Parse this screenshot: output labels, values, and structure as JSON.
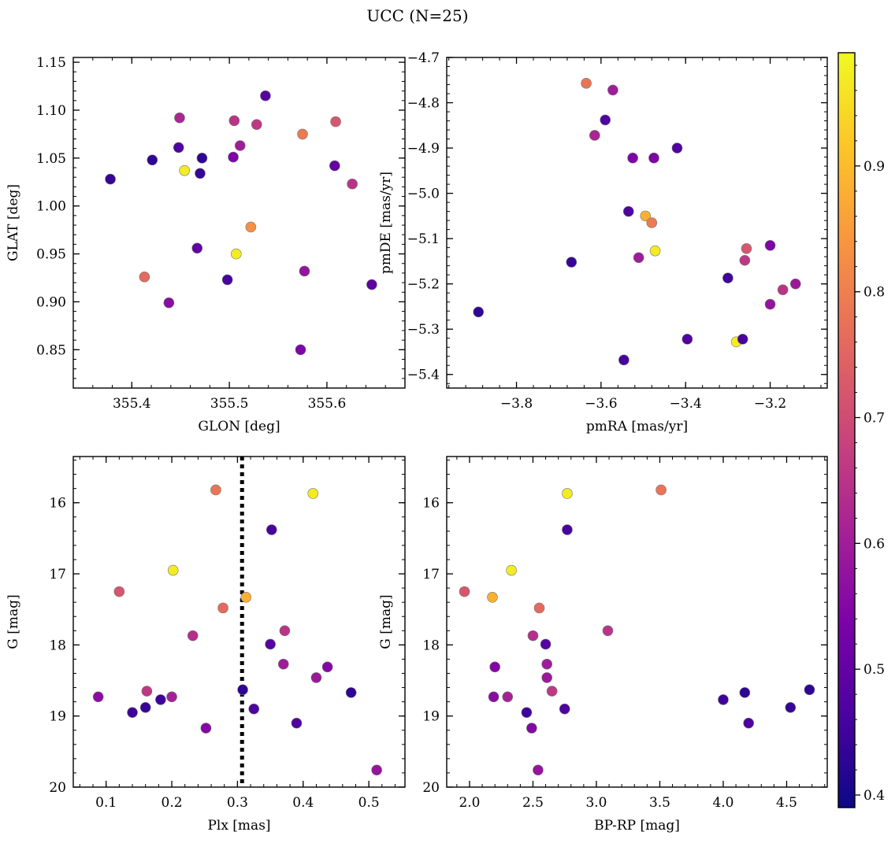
{
  "figure": {
    "suptitle": "UCC (N=25)"
  },
  "colorbar": {
    "colormap": "plasma",
    "range": [
      0.39,
      0.99
    ],
    "ticks": [
      0.4,
      0.5,
      0.6,
      0.7,
      0.8,
      0.9
    ],
    "tick_labels": [
      "0.4",
      "0.5",
      "0.6",
      "0.7",
      "0.8",
      "0.9"
    ]
  },
  "chart_data": [
    {
      "type": "scatter",
      "xlabel": "GLON [deg]",
      "ylabel": "GLAT [deg]",
      "xlim": [
        355.34,
        355.68
      ],
      "ylim": [
        0.81,
        1.155
      ],
      "xticks": [
        355.4,
        355.5,
        355.6
      ],
      "xtick_labels": [
        "355.4",
        "355.5",
        "355.6"
      ],
      "yticks": [
        0.85,
        0.9,
        0.95,
        1.0,
        1.05,
        1.1,
        1.15
      ],
      "ytick_labels": [
        "0.85",
        "0.90",
        "0.95",
        "1.00",
        "1.05",
        "1.10",
        "1.15"
      ],
      "x": [
        355.378,
        355.421,
        355.449,
        355.448,
        355.454,
        355.47,
        355.472,
        355.467,
        355.438,
        355.413,
        355.498,
        355.505,
        355.507,
        355.511,
        355.504,
        355.522,
        355.528,
        355.537,
        355.573,
        355.575,
        355.577,
        355.608,
        355.609,
        355.626,
        355.646
      ],
      "y": [
        1.028,
        1.048,
        1.092,
        1.061,
        1.037,
        1.034,
        1.05,
        0.956,
        0.899,
        0.926,
        0.923,
        1.089,
        0.95,
        1.063,
        1.051,
        0.978,
        1.085,
        1.115,
        0.85,
        1.075,
        0.932,
        1.042,
        1.088,
        1.023,
        0.918
      ],
      "c": [
        0.44,
        0.43,
        0.62,
        0.47,
        0.97,
        0.44,
        0.43,
        0.5,
        0.56,
        0.76,
        0.46,
        0.65,
        0.97,
        0.6,
        0.54,
        0.83,
        0.66,
        0.48,
        0.54,
        0.79,
        0.58,
        0.5,
        0.72,
        0.65,
        0.49
      ]
    },
    {
      "type": "scatter",
      "xlabel": "pmRA [mas/yr]",
      "ylabel": "pmDE [mas/yr]",
      "xlim": [
        -3.965,
        -3.065
      ],
      "ylim": [
        -5.43,
        -4.7
      ],
      "xticks": [
        -3.8,
        -3.6,
        -3.4,
        -3.2
      ],
      "xtick_labels": [
        "−3.8",
        "−3.6",
        "−3.4",
        "−3.2"
      ],
      "yticks": [
        -5.4,
        -5.3,
        -5.2,
        -5.1,
        -5.0,
        -4.9,
        -4.8,
        -4.7
      ],
      "ytick_labels": [
        "−5.4",
        "−5.3",
        "−5.2",
        "−5.1",
        "−5.0",
        "−4.9",
        "−4.8",
        "−4.7"
      ],
      "x": [
        -3.89,
        -3.67,
        -3.635,
        -3.59,
        -3.572,
        -3.615,
        -3.546,
        -3.535,
        -3.525,
        -3.511,
        -3.495,
        -3.48,
        -3.475,
        -3.472,
        -3.42,
        -3.396,
        -3.3,
        -3.28,
        -3.265,
        -3.26,
        -3.256,
        -3.2,
        -3.2,
        -3.17,
        -3.14
      ],
      "y": [
        -5.262,
        -5.152,
        -4.757,
        -4.838,
        -4.772,
        -4.872,
        -5.368,
        -5.04,
        -4.922,
        -5.142,
        -5.05,
        -5.065,
        -4.922,
        -5.127,
        -4.9,
        -5.322,
        -5.187,
        -5.328,
        -5.322,
        -5.148,
        -5.122,
        -5.245,
        -5.115,
        -5.213,
        -5.2
      ],
      "c": [
        0.43,
        0.44,
        0.78,
        0.47,
        0.6,
        0.62,
        0.46,
        0.47,
        0.54,
        0.6,
        0.88,
        0.79,
        0.54,
        0.97,
        0.47,
        0.47,
        0.45,
        0.97,
        0.46,
        0.66,
        0.72,
        0.58,
        0.54,
        0.65,
        0.59
      ]
    },
    {
      "type": "scatter",
      "xlabel": "Plx [mas]",
      "ylabel": "G [mag]",
      "xlim": [
        0.05,
        0.555
      ],
      "ylim": [
        20.0,
        15.35
      ],
      "y_inverted": true,
      "xticks": [
        0.1,
        0.2,
        0.3,
        0.4,
        0.5
      ],
      "xtick_labels": [
        "0.1",
        "0.2",
        "0.3",
        "0.4",
        "0.5"
      ],
      "yticks": [
        16,
        17,
        18,
        19,
        20
      ],
      "ytick_labels": [
        "16",
        "17",
        "18",
        "19",
        "20"
      ],
      "vline": {
        "x": 0.307,
        "style": "dotted",
        "color": "#000000"
      },
      "x": [
        0.088,
        0.12,
        0.14,
        0.16,
        0.162,
        0.183,
        0.2,
        0.202,
        0.232,
        0.252,
        0.267,
        0.278,
        0.308,
        0.313,
        0.325,
        0.35,
        0.352,
        0.37,
        0.372,
        0.39,
        0.415,
        0.42,
        0.437,
        0.473,
        0.512
      ],
      "y": [
        18.73,
        17.25,
        18.95,
        18.88,
        18.65,
        18.77,
        18.73,
        16.95,
        17.87,
        19.17,
        15.82,
        17.48,
        18.63,
        17.33,
        18.9,
        17.99,
        16.38,
        18.27,
        17.8,
        19.1,
        15.87,
        18.46,
        18.31,
        18.67,
        19.76
      ],
      "c": [
        0.56,
        0.72,
        0.45,
        0.44,
        0.66,
        0.45,
        0.61,
        0.97,
        0.64,
        0.55,
        0.78,
        0.76,
        0.43,
        0.88,
        0.47,
        0.48,
        0.46,
        0.6,
        0.65,
        0.47,
        0.97,
        0.59,
        0.55,
        0.43,
        0.58
      ]
    },
    {
      "type": "scatter",
      "xlabel": "BP-RP [mag]",
      "ylabel": "G [mag]",
      "xlim": [
        1.82,
        4.82
      ],
      "ylim": [
        20.0,
        15.35
      ],
      "y_inverted": true,
      "xticks": [
        2.0,
        2.5,
        3.0,
        3.5,
        4.0,
        4.5
      ],
      "xtick_labels": [
        "2.0",
        "2.5",
        "3.0",
        "3.5",
        "4.0",
        "4.5"
      ],
      "yticks": [
        16,
        17,
        18,
        19,
        20
      ],
      "ytick_labels": [
        "16",
        "17",
        "18",
        "19",
        "20"
      ],
      "x": [
        1.96,
        2.18,
        2.19,
        2.2,
        2.3,
        2.33,
        2.45,
        2.49,
        2.5,
        2.54,
        2.55,
        2.6,
        2.61,
        2.61,
        2.65,
        2.75,
        2.77,
        2.77,
        3.09,
        3.51,
        4.0,
        4.17,
        4.2,
        4.53,
        4.68
      ],
      "y": [
        17.25,
        17.33,
        18.73,
        18.31,
        18.73,
        16.95,
        18.95,
        19.17,
        17.87,
        19.76,
        17.48,
        17.99,
        18.27,
        18.46,
        18.65,
        18.9,
        16.38,
        15.87,
        17.8,
        15.82,
        18.77,
        18.67,
        19.1,
        18.88,
        18.63
      ],
      "c": [
        0.72,
        0.88,
        0.56,
        0.55,
        0.61,
        0.97,
        0.45,
        0.55,
        0.64,
        0.58,
        0.76,
        0.48,
        0.6,
        0.59,
        0.66,
        0.47,
        0.46,
        0.97,
        0.65,
        0.78,
        0.45,
        0.43,
        0.47,
        0.44,
        0.43
      ]
    }
  ]
}
